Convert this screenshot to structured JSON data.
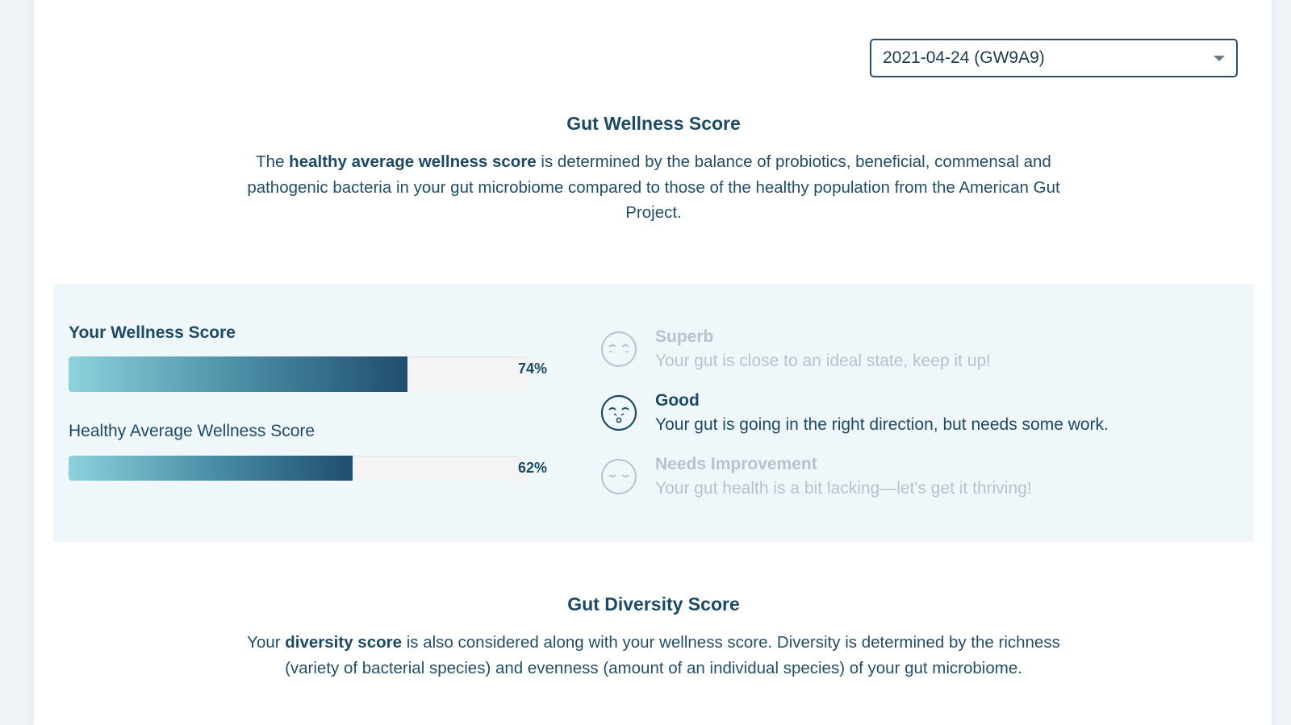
{
  "sample_select": {
    "selected": "2021-04-24 (GW9A9)"
  },
  "wellness": {
    "title": "Gut Wellness Score",
    "desc_prefix": "The ",
    "desc_bold": "healthy average wellness score",
    "desc_rest": " is determined by the balance of probiotics, beneficial, commensal and pathogenic bacteria in your gut microbiome compared to those of the healthy population from the American Gut Project."
  },
  "scores": {
    "yours": {
      "label": "Your Wellness Score",
      "value_text": "74%",
      "value": 74
    },
    "healthy": {
      "label": "Healthy Average Wellness Score",
      "value_text": "62%",
      "value": 62
    }
  },
  "legend": [
    {
      "title": "Superb",
      "desc": "Your gut is close to an ideal state, keep it up!",
      "icon": "superb-face-icon",
      "active": false
    },
    {
      "title": "Good",
      "desc": "Your gut is going in the right direction, but needs some work.",
      "icon": "good-face-icon",
      "active": true
    },
    {
      "title": "Needs Improvement",
      "desc": "Your gut health is a bit lacking—let's get it thriving!",
      "icon": "needs-improvement-face-icon",
      "active": false
    }
  ],
  "diversity": {
    "title": "Gut Diversity Score",
    "desc_prefix": "Your ",
    "desc_bold": "diversity score",
    "desc_rest": " is also considered along with your wellness score. Diversity is determined by the richness (variety of bacterial species) and evenness (amount of an individual species) of your gut microbiome."
  },
  "colors": {
    "primary": "#1d4a63",
    "dim": "#b5c3cc",
    "panel_bg": "#eff7fa",
    "bar_start": "#8dd2dc",
    "bar_end": "#1f4e6e"
  }
}
